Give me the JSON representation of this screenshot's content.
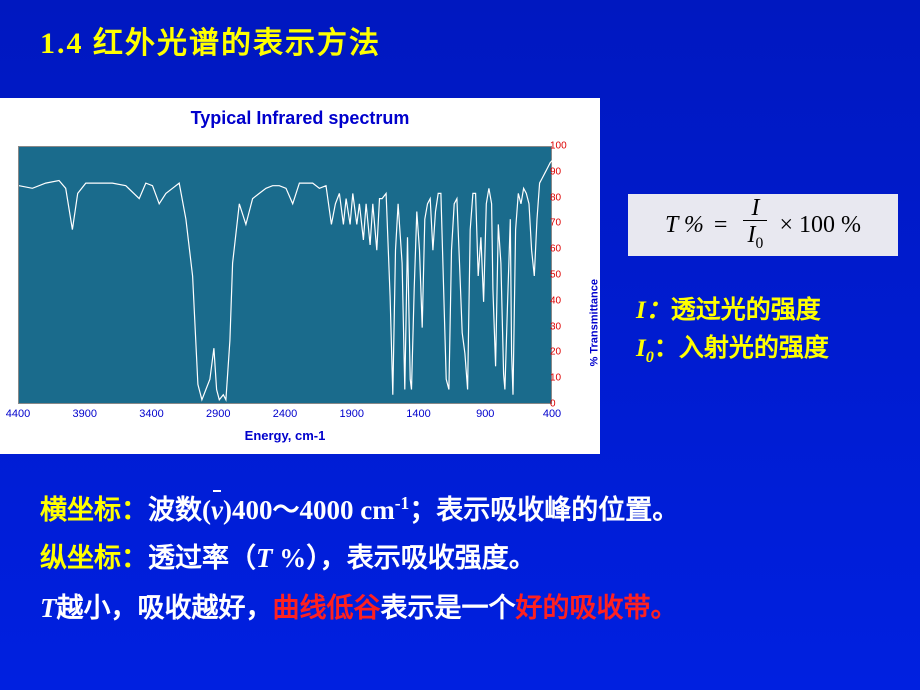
{
  "title": "1.4 红外光谱的表示方法",
  "chart": {
    "type": "line",
    "title": "Typical Infrared spectrum",
    "xlabel": "Energy, cm-1",
    "ylabel": "% Transmittance",
    "background_color": "#ffffff",
    "plot_background": "#1a6b8c",
    "line_color": "#ffffff",
    "line_width": 1.2,
    "tick_color_x": "#0000cc",
    "tick_color_y": "#dd0000",
    "label_color": "#0000cc",
    "xlim": [
      4400,
      400
    ],
    "ylim": [
      0,
      100
    ],
    "xtick_step": 500,
    "ytick_step": 10,
    "xticks": [
      4400,
      3900,
      3400,
      2900,
      2400,
      1900,
      1400,
      900,
      400
    ],
    "yticks": [
      0,
      10,
      20,
      30,
      40,
      50,
      60,
      70,
      80,
      90,
      100
    ],
    "title_fontsize": 18,
    "label_fontsize": 13,
    "tick_fontsize": 10,
    "data": [
      [
        4400,
        85
      ],
      [
        4300,
        84
      ],
      [
        4200,
        86
      ],
      [
        4100,
        87
      ],
      [
        4050,
        84
      ],
      [
        4000,
        68
      ],
      [
        3960,
        82
      ],
      [
        3900,
        86
      ],
      [
        3800,
        86
      ],
      [
        3700,
        86
      ],
      [
        3600,
        85
      ],
      [
        3500,
        80
      ],
      [
        3450,
        86
      ],
      [
        3400,
        85
      ],
      [
        3350,
        78
      ],
      [
        3300,
        82
      ],
      [
        3250,
        84
      ],
      [
        3200,
        86
      ],
      [
        3150,
        72
      ],
      [
        3100,
        50
      ],
      [
        3060,
        8
      ],
      [
        3030,
        2
      ],
      [
        3000,
        6
      ],
      [
        2970,
        10
      ],
      [
        2940,
        22
      ],
      [
        2920,
        6
      ],
      [
        2900,
        2
      ],
      [
        2870,
        4
      ],
      [
        2850,
        2
      ],
      [
        2820,
        25
      ],
      [
        2800,
        55
      ],
      [
        2750,
        78
      ],
      [
        2700,
        70
      ],
      [
        2650,
        80
      ],
      [
        2600,
        82
      ],
      [
        2550,
        84
      ],
      [
        2500,
        85
      ],
      [
        2450,
        85
      ],
      [
        2400,
        84
      ],
      [
        2350,
        78
      ],
      [
        2300,
        86
      ],
      [
        2250,
        86
      ],
      [
        2200,
        86
      ],
      [
        2150,
        84
      ],
      [
        2100,
        85
      ],
      [
        2060,
        70
      ],
      [
        2030,
        78
      ],
      [
        2000,
        82
      ],
      [
        1970,
        70
      ],
      [
        1950,
        80
      ],
      [
        1920,
        70
      ],
      [
        1900,
        82
      ],
      [
        1870,
        70
      ],
      [
        1850,
        78
      ],
      [
        1820,
        64
      ],
      [
        1800,
        78
      ],
      [
        1770,
        62
      ],
      [
        1750,
        78
      ],
      [
        1720,
        60
      ],
      [
        1700,
        80
      ],
      [
        1680,
        80
      ],
      [
        1650,
        82
      ],
      [
        1620,
        42
      ],
      [
        1600,
        4
      ],
      [
        1580,
        60
      ],
      [
        1560,
        78
      ],
      [
        1530,
        55
      ],
      [
        1510,
        6
      ],
      [
        1490,
        65
      ],
      [
        1470,
        10
      ],
      [
        1460,
        6
      ],
      [
        1440,
        45
      ],
      [
        1420,
        75
      ],
      [
        1400,
        60
      ],
      [
        1380,
        30
      ],
      [
        1360,
        72
      ],
      [
        1340,
        78
      ],
      [
        1320,
        80
      ],
      [
        1300,
        60
      ],
      [
        1280,
        75
      ],
      [
        1260,
        82
      ],
      [
        1240,
        82
      ],
      [
        1200,
        10
      ],
      [
        1180,
        6
      ],
      [
        1160,
        60
      ],
      [
        1140,
        78
      ],
      [
        1120,
        80
      ],
      [
        1100,
        55
      ],
      [
        1080,
        28
      ],
      [
        1060,
        20
      ],
      [
        1040,
        6
      ],
      [
        1020,
        68
      ],
      [
        1000,
        82
      ],
      [
        980,
        82
      ],
      [
        960,
        50
      ],
      [
        940,
        65
      ],
      [
        920,
        40
      ],
      [
        900,
        78
      ],
      [
        880,
        84
      ],
      [
        860,
        78
      ],
      [
        850,
        45
      ],
      [
        830,
        15
      ],
      [
        810,
        70
      ],
      [
        790,
        55
      ],
      [
        770,
        12
      ],
      [
        760,
        6
      ],
      [
        740,
        40
      ],
      [
        720,
        72
      ],
      [
        710,
        20
      ],
      [
        700,
        4
      ],
      [
        680,
        68
      ],
      [
        660,
        82
      ],
      [
        640,
        78
      ],
      [
        620,
        84
      ],
      [
        600,
        82
      ],
      [
        580,
        78
      ],
      [
        560,
        60
      ],
      [
        540,
        50
      ],
      [
        520,
        72
      ],
      [
        500,
        86
      ],
      [
        480,
        88
      ],
      [
        460,
        90
      ],
      [
        440,
        92
      ],
      [
        420,
        94
      ],
      [
        400,
        95
      ]
    ]
  },
  "formula": {
    "lhs": "T %",
    "eq": "=",
    "num": "I",
    "den_base": "I",
    "den_sub": "0",
    "times": "× 100  %"
  },
  "legend": {
    "I_label": "I：",
    "I_text": "透过光的强度",
    "I0_base": "I",
    "I0_sub": "0",
    "I0_colon": "：",
    "I0_text": "入射光的强度"
  },
  "lines": {
    "l1_a": "横坐标：",
    "l1_b": "波数(",
    "l1_nu": "ν",
    "l1_c": ")400～4000 cm",
    "l1_sup": "-1",
    "l1_d": "；表示吸收峰的位置。",
    "l2_a": "纵坐标：",
    "l2_b": "透过率（",
    "l2_T": "T",
    "l2_c": " %），表示吸收强度。",
    "l3_T": "T",
    "l3_a": "越小，吸收越好，",
    "l3_b": "曲线低谷",
    "l3_c": "表示是一个",
    "l3_d": "好的吸收带。"
  }
}
